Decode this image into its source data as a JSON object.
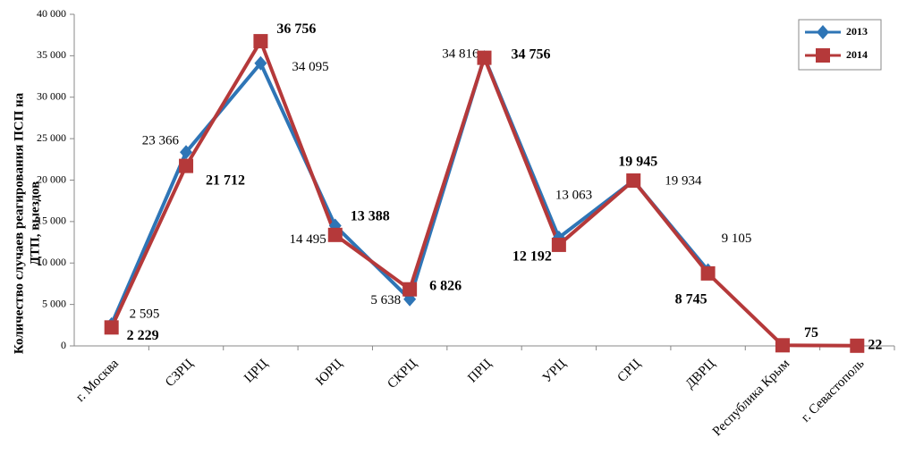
{
  "chart_data": {
    "type": "line",
    "ylabel": [
      "Количество случаев реагирования  ПСП на",
      "ДТП, выездов"
    ],
    "categories": [
      "г. Москва",
      "СЗРЦ",
      "ЦРЦ",
      "ЮРЦ",
      "СКРЦ",
      "ПРЦ",
      "УРЦ",
      "СРЦ",
      "ДВРЦ",
      "Республика Крым",
      "г. Севастополь"
    ],
    "series": [
      {
        "name": "2013",
        "color": "#2e75b6",
        "marker": "diamond",
        "values": [
          2595,
          23366,
          34095,
          14495,
          5638,
          34816,
          13063,
          19934,
          9105,
          null,
          null
        ],
        "value_labels": [
          "2 595",
          "23 366",
          "34 095",
          "14 495",
          "5 638",
          "34 816",
          "13 063",
          "19 934",
          "9 105",
          null,
          null
        ]
      },
      {
        "name": "2014",
        "color": "#b5393a",
        "marker": "square",
        "values": [
          2229,
          21712,
          36756,
          13388,
          6826,
          34756,
          12192,
          19945,
          8745,
          75,
          22
        ],
        "value_labels": [
          "2 229",
          "21 712",
          "36 756",
          "13 388",
          "6 826",
          "34 756",
          "12 192",
          "19 945",
          "8 745",
          "75",
          "22"
        ]
      }
    ],
    "ylim": [
      0,
      40000
    ],
    "yticks": [
      0,
      {
        "value": 5000,
        "label": "5 000"
      },
      {
        "value": 10000,
        "label": "10 000"
      },
      {
        "value": 15000,
        "label": "15 000"
      },
      {
        "value": 20000,
        "label": "20 000"
      },
      {
        "value": 25000,
        "label": "25 000"
      },
      {
        "value": 30000,
        "label": "30 000"
      },
      {
        "value": 35000,
        "label": "35 000"
      },
      {
        "value": 40000,
        "label": "40 000"
      }
    ],
    "legend": "top-right"
  }
}
